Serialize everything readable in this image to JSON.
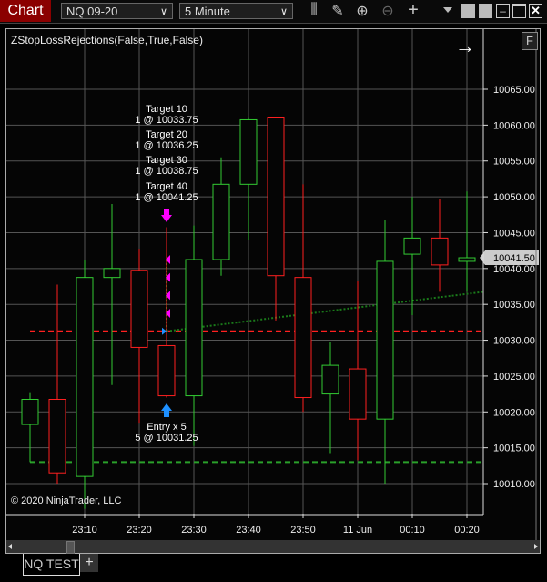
{
  "window": {
    "title": "Chart"
  },
  "toolbar": {
    "instrument": "NQ 09-20",
    "interval": "5 Minute",
    "icons": [
      "bar-type-icon",
      "drawing-pencil-icon",
      "zoom-in-icon",
      "zoom-out-icon",
      "crosshair-icon"
    ]
  },
  "chart": {
    "indicator_label": "ZStopLossRejections(False,True,False)",
    "f_button": "F",
    "copyright": "© 2020 NinjaTrader, LLC",
    "current_price": "10041.50",
    "price_ticks": [
      "10065.00",
      "10060.00",
      "10055.00",
      "10050.00",
      "10045.00",
      "10040.00",
      "10035.00",
      "10030.00",
      "10025.00",
      "10020.00",
      "10015.00",
      "10010.00"
    ],
    "time_ticks": [
      "23:10",
      "23:20",
      "23:30",
      "23:40",
      "23:50",
      "11 Jun",
      "00:10",
      "00:20"
    ],
    "colors": {
      "up": "#33cc33",
      "down": "#ff2020",
      "target": "#ff00ff",
      "entry": "#1e90ff",
      "stop": "#ff2020",
      "trail": "#2aa02a"
    },
    "candles": [
      {
        "o": 10018.25,
        "h": 10022.75,
        "l": 10013,
        "c": 10021.75
      },
      {
        "o": 10021.75,
        "h": 10037.75,
        "l": 10010,
        "c": 10011.5
      },
      {
        "o": 10011,
        "h": 10041.25,
        "l": 10006.5,
        "c": 10038.75
      },
      {
        "o": 10038.75,
        "h": 10049,
        "l": 10023.75,
        "c": 10040
      },
      {
        "o": 10039.75,
        "h": 10042.75,
        "l": 10018.5,
        "c": 10029
      },
      {
        "o": 10029.25,
        "h": 10045.75,
        "l": 10022,
        "c": 10022.25
      },
      {
        "o": 10022.25,
        "h": 10046,
        "l": 10015.25,
        "c": 10041.25
      },
      {
        "o": 10041.25,
        "h": 10055.5,
        "l": 10039,
        "c": 10051.75
      },
      {
        "o": 10051.75,
        "h": 10061,
        "l": 10044,
        "c": 10060.75
      },
      {
        "o": 10061,
        "h": 10061,
        "l": 10032.75,
        "c": 10039
      },
      {
        "o": 10038.75,
        "h": 10051.75,
        "l": 10020,
        "c": 10022
      },
      {
        "o": 10022.5,
        "h": 10029.75,
        "l": 10014.25,
        "c": 10026.5
      },
      {
        "o": 10026,
        "h": 10038.25,
        "l": 10013.25,
        "c": 10019
      },
      {
        "o": 10019,
        "h": 10046.75,
        "l": 10010,
        "c": 10041
      },
      {
        "o": 10042,
        "h": 10050,
        "l": 10033.5,
        "c": 10044.25
      },
      {
        "o": 10044.25,
        "h": 10049.75,
        "l": 10036.75,
        "c": 10040.5
      },
      {
        "o": 10041,
        "h": 10050.75,
        "l": 10036.75,
        "c": 10041.5
      }
    ],
    "stop_line": 10031.25,
    "trail_stop": 10013,
    "trend_line": {
      "from": 10031.25,
      "to": 10036.75
    },
    "targets": [
      {
        "name": "Target 10",
        "fill": "1 @ 10033.75",
        "price": 10033.75
      },
      {
        "name": "Target 20",
        "fill": "1 @ 10036.25",
        "price": 10036.25
      },
      {
        "name": "Target 30",
        "fill": "1 @ 10038.75",
        "price": 10038.75
      },
      {
        "name": "Target 40",
        "fill": "1 @ 10041.25",
        "price": 10041.25
      }
    ],
    "entry": {
      "name": "Entry x 5",
      "fill": "5 @ 10031.25",
      "price": 10031.25
    }
  },
  "tabs": {
    "active": "NQ TEST",
    "add": "+"
  }
}
